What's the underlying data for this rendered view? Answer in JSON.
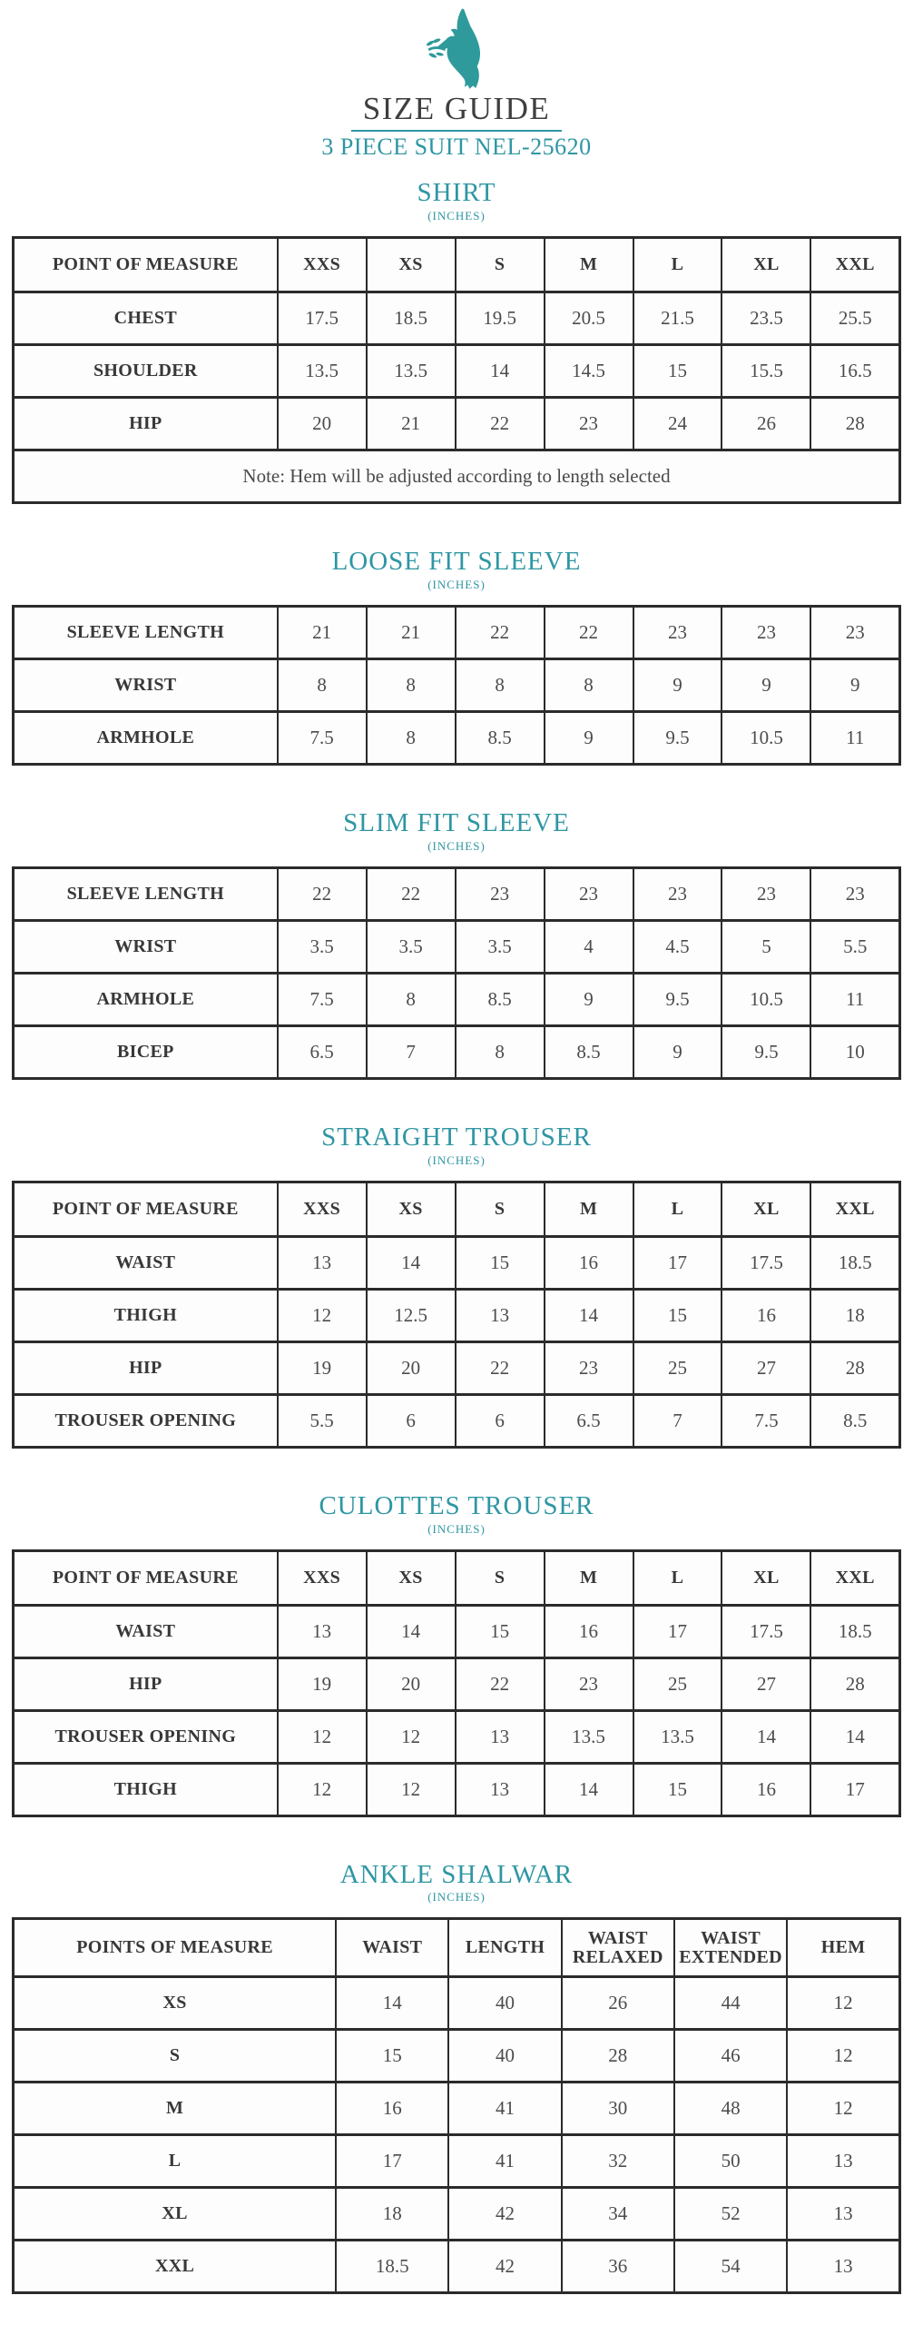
{
  "page": {
    "title": "SIZE GUIDE",
    "subtitle": "3 PIECE SUIT NEL-25620",
    "accent_color": "#2e96a3",
    "text_color": "#3a3a3a",
    "logo_icon": "dove-with-olive-branch"
  },
  "sections": [
    {
      "id": "shirt",
      "title": "SHIRT",
      "unit": "(INCHES)",
      "header": [
        "POINT OF MEASURE",
        "XXS",
        "XS",
        "S",
        "M",
        "L",
        "XL",
        "XXL"
      ],
      "rows": [
        {
          "label": "CHEST",
          "values": [
            "17.5",
            "18.5",
            "19.5",
            "20.5",
            "21.5",
            "23.5",
            "25.5"
          ]
        },
        {
          "label": "SHOULDER",
          "values": [
            "13.5",
            "13.5",
            "14",
            "14.5",
            "15",
            "15.5",
            "16.5"
          ]
        },
        {
          "label": "HIP",
          "values": [
            "20",
            "21",
            "22",
            "23",
            "24",
            "26",
            "28"
          ]
        }
      ],
      "note": "Note: Hem will be adjusted according to length selected"
    },
    {
      "id": "loose-fit-sleeve",
      "title": "LOOSE FIT SLEEVE",
      "unit": "(INCHES)",
      "rows": [
        {
          "label": "SLEEVE LENGTH",
          "values": [
            "21",
            "21",
            "22",
            "22",
            "23",
            "23",
            "23"
          ]
        },
        {
          "label": "WRIST",
          "values": [
            "8",
            "8",
            "8",
            "8",
            "9",
            "9",
            "9"
          ]
        },
        {
          "label": "ARMHOLE",
          "values": [
            "7.5",
            "8",
            "8.5",
            "9",
            "9.5",
            "10.5",
            "11"
          ]
        }
      ]
    },
    {
      "id": "slim-fit-sleeve",
      "title": "SLIM FIT SLEEVE",
      "unit": "(INCHES)",
      "rows": [
        {
          "label": "SLEEVE LENGTH",
          "values": [
            "22",
            "22",
            "23",
            "23",
            "23",
            "23",
            "23"
          ]
        },
        {
          "label": "WRIST",
          "values": [
            "3.5",
            "3.5",
            "3.5",
            "4",
            "4.5",
            "5",
            "5.5"
          ]
        },
        {
          "label": "ARMHOLE",
          "values": [
            "7.5",
            "8",
            "8.5",
            "9",
            "9.5",
            "10.5",
            "11"
          ]
        },
        {
          "label": "BICEP",
          "values": [
            "6.5",
            "7",
            "8",
            "8.5",
            "9",
            "9.5",
            "10"
          ]
        }
      ]
    },
    {
      "id": "straight-trouser",
      "title": "STRAIGHT TROUSER",
      "unit": "(INCHES)",
      "header": [
        "POINT OF MEASURE",
        "XXS",
        "XS",
        "S",
        "M",
        "L",
        "XL",
        "XXL"
      ],
      "rows": [
        {
          "label": "WAIST",
          "values": [
            "13",
            "14",
            "15",
            "16",
            "17",
            "17.5",
            "18.5"
          ]
        },
        {
          "label": "THIGH",
          "values": [
            "12",
            "12.5",
            "13",
            "14",
            "15",
            "16",
            "18"
          ]
        },
        {
          "label": "HIP",
          "values": [
            "19",
            "20",
            "22",
            "23",
            "25",
            "27",
            "28"
          ]
        },
        {
          "label": "TROUSER OPENING",
          "values": [
            "5.5",
            "6",
            "6",
            "6.5",
            "7",
            "7.5",
            "8.5"
          ]
        }
      ]
    },
    {
      "id": "culottes-trouser",
      "title": "CULOTTES TROUSER",
      "unit": "(INCHES)",
      "header": [
        "POINT OF MEASURE",
        "XXS",
        "XS",
        "S",
        "M",
        "L",
        "XL",
        "XXL"
      ],
      "rows": [
        {
          "label": "WAIST",
          "values": [
            "13",
            "14",
            "15",
            "16",
            "17",
            "17.5",
            "18.5"
          ]
        },
        {
          "label": "HIP",
          "values": [
            "19",
            "20",
            "22",
            "23",
            "25",
            "27",
            "28"
          ]
        },
        {
          "label": "TROUSER OPENING",
          "values": [
            "12",
            "12",
            "13",
            "13.5",
            "13.5",
            "14",
            "14"
          ]
        },
        {
          "label": "THIGH",
          "values": [
            "12",
            "12",
            "13",
            "14",
            "15",
            "16",
            "17"
          ]
        }
      ]
    },
    {
      "id": "ankle-shalwar",
      "title": "ANKLE SHALWAR",
      "unit": "(INCHES)",
      "header": [
        "POINTS OF MEASURE",
        "WAIST",
        "LENGTH",
        "WAIST RELAXED",
        "WAIST EXTENDED",
        "HEM"
      ],
      "rows": [
        {
          "label": "XS",
          "values": [
            "14",
            "40",
            "26",
            "44",
            "12"
          ]
        },
        {
          "label": "S",
          "values": [
            "15",
            "40",
            "28",
            "46",
            "12"
          ]
        },
        {
          "label": "M",
          "values": [
            "16",
            "41",
            "30",
            "48",
            "12"
          ]
        },
        {
          "label": "L",
          "values": [
            "17",
            "41",
            "32",
            "50",
            "13"
          ]
        },
        {
          "label": "XL",
          "values": [
            "18",
            "42",
            "34",
            "52",
            "13"
          ]
        },
        {
          "label": "XXL",
          "values": [
            "18.5",
            "42",
            "36",
            "54",
            "13"
          ]
        }
      ]
    }
  ]
}
